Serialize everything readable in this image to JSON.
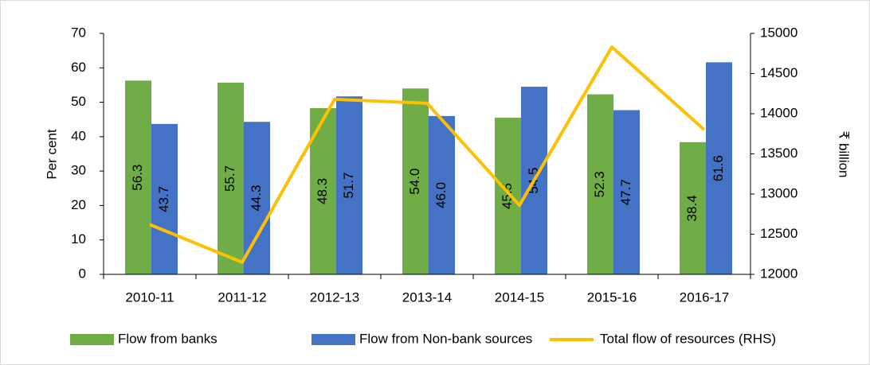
{
  "chart_data": {
    "type": "bar_line",
    "y_label": "Per cent",
    "y2_label": "₹ billion",
    "categories": [
      "2010-11",
      "2011-12",
      "2012-13",
      "2013-14",
      "2014-15",
      "2015-16",
      "2016-17"
    ],
    "series": [
      {
        "name": "Flow from banks",
        "type": "bar",
        "color": "#70ad47",
        "values": [
          56.3,
          55.7,
          48.3,
          54,
          45.5,
          52.3,
          38.4
        ],
        "value_labels": [
          "56.3",
          "55.7",
          "48.3",
          "54.0",
          "45.5",
          "52.3",
          "38.4"
        ]
      },
      {
        "name": "Flow from Non-bank sources",
        "type": "bar",
        "color": "#4472c4",
        "values": [
          43.7,
          44.3,
          51.7,
          46,
          54.5,
          47.7,
          61.6
        ],
        "value_labels": [
          "43.7",
          "44.3",
          "51.7",
          "46.0",
          "54.5",
          "47.7",
          "61.6"
        ]
      },
      {
        "name": "Total flow of resources (RHS)",
        "type": "line",
        "axis": "y2",
        "color": "#ffc000",
        "values": [
          12620,
          12150,
          14180,
          14130,
          12860,
          14830,
          13800
        ]
      }
    ],
    "ylim": [
      0,
      70
    ],
    "yticks": [
      0,
      10,
      20,
      30,
      40,
      50,
      60,
      70
    ],
    "y2lim": [
      12000,
      15000
    ],
    "y2ticks": [
      12000,
      12500,
      13000,
      13500,
      14000,
      14500,
      15000
    ],
    "legend": "bottom"
  }
}
